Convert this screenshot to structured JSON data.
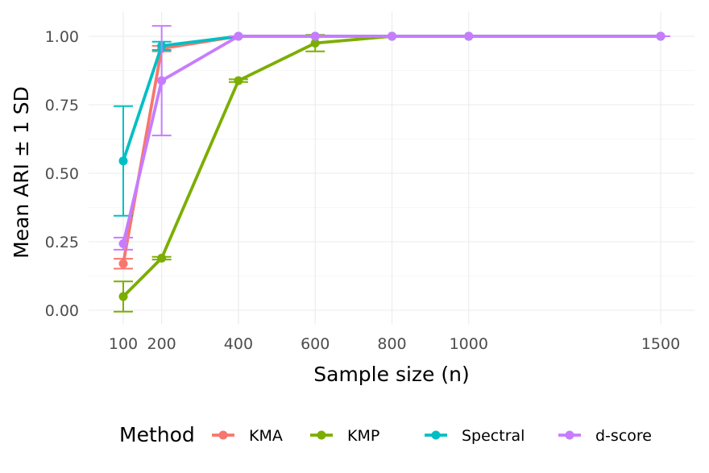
{
  "chart_data": {
    "type": "line",
    "title": "",
    "xlabel": "Sample size (n)",
    "ylabel": "Mean ARI ± 1 SD",
    "x": [
      100,
      200,
      400,
      600,
      800,
      1000,
      1500
    ],
    "x_tick_labels": [
      "100",
      "200",
      "400",
      "600",
      "800",
      "1000",
      "1500"
    ],
    "xlim": [
      100,
      1500
    ],
    "ylim": [
      0,
      1
    ],
    "y_ticks": [
      0,
      0.25,
      0.5,
      0.75,
      1.0
    ],
    "y_tick_labels": [
      "0.00",
      "0.25",
      "0.50",
      "0.75",
      "1.00"
    ],
    "grid": true,
    "error_bars": "±1 SD",
    "legend": {
      "title": "Method",
      "position": "bottom"
    },
    "series": [
      {
        "name": "KMA",
        "color": "#F8766D",
        "values": [
          0.17,
          0.955,
          1.0,
          1.0,
          1.0,
          1.0,
          1.0
        ],
        "sd": [
          0.018,
          0.01,
          0.0,
          0.0,
          0.0,
          0.0,
          0.0
        ]
      },
      {
        "name": "KMP",
        "color": "#7CAE00",
        "values": [
          0.05,
          0.19,
          0.838,
          0.975,
          1.0,
          1.0,
          1.0
        ],
        "sd": [
          0.055,
          0.005,
          0.005,
          0.03,
          0.0,
          0.0,
          0.0
        ]
      },
      {
        "name": "Spectral",
        "color": "#00BFC4",
        "values": [
          0.545,
          0.965,
          1.0,
          1.0,
          1.0,
          1.0,
          1.0
        ],
        "sd": [
          0.2,
          0.015,
          0.0,
          0.0,
          0.0,
          0.0,
          0.0
        ]
      },
      {
        "name": "d-score",
        "color": "#C77CFF",
        "values": [
          0.243,
          0.838,
          1.0,
          1.0,
          1.0,
          1.0,
          1.0
        ],
        "sd": [
          0.022,
          0.2,
          0.0,
          0.0,
          0.0,
          0.0,
          0.0
        ]
      }
    ]
  }
}
